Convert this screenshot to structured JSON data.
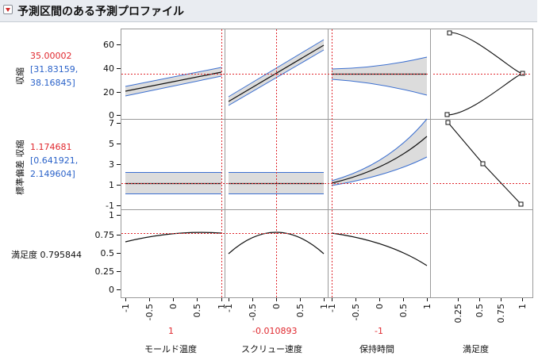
{
  "title": "予測区間のある予測プロファイル",
  "rows": [
    {
      "label": "収縮",
      "value": "35.00002",
      "interval_low": "[31.83159,",
      "interval_high": "38.16845]"
    },
    {
      "label": "標準偏差 収縮",
      "value": "1.174681",
      "interval_low": "[0.641921,",
      "interval_high": "2.149604]"
    },
    {
      "label": "満足度 0.795844"
    }
  ],
  "factors": [
    {
      "name": "モールド温度",
      "current": "1"
    },
    {
      "name": "スクリュー速度",
      "current": "-0.010893"
    },
    {
      "name": "保持時間",
      "current": "-1"
    }
  ],
  "desirability_label": "満足度",
  "y_ticks": {
    "row1": [
      "60",
      "40",
      "20",
      "0"
    ],
    "row2": [
      "7",
      "5",
      "3",
      "1",
      "-1"
    ],
    "row3": [
      "1",
      "0.75",
      "0.5",
      "0.25",
      "0"
    ]
  },
  "x_ticks": [
    "-1",
    "-0.5",
    "0",
    "0.5",
    "1"
  ],
  "desirability_ticks": [
    "0.25",
    "0.5",
    "0.75",
    "1"
  ],
  "colors": {
    "current": "#e0282e",
    "interval": "#2a62c9",
    "band": "#dcdcdc",
    "grid": "#9a9a9a"
  }
}
